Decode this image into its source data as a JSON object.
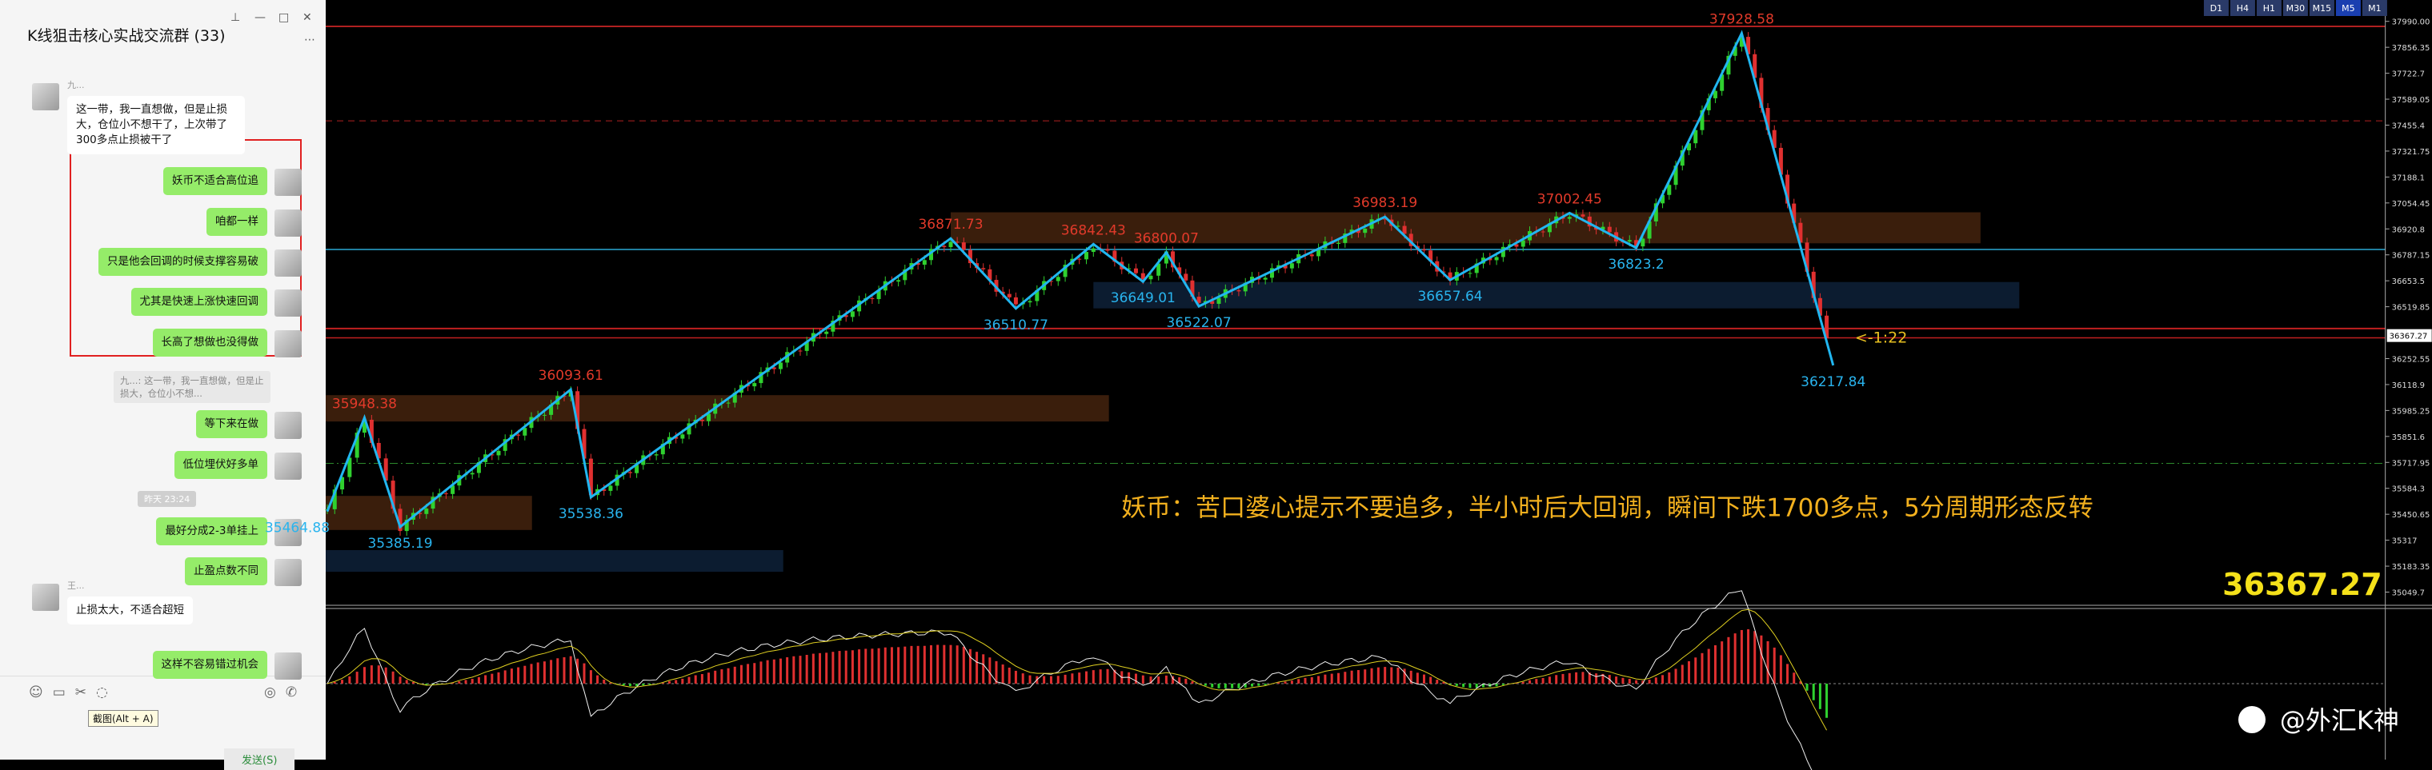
{
  "chat": {
    "title": "K线狙击核心实战交流群 (33)",
    "messages": [
      {
        "side": "left",
        "name": "九...",
        "text": "这一带，我一直想做，但是止损大，仓位小不想干了，上次带了300多点止损被干了"
      },
      {
        "side": "right",
        "text": "妖币不适合高位追"
      },
      {
        "side": "right",
        "text": "咱都一样"
      },
      {
        "side": "right",
        "text": "只是他会回调的时候支撑容易破"
      },
      {
        "side": "right",
        "text": "尤其是快速上涨快速回调"
      },
      {
        "side": "right",
        "text": "长高了想做也没得做"
      },
      {
        "side": "quote",
        "text": "九...: 这一带，我一直想做，但是止损大，仓位小不想..."
      },
      {
        "side": "right",
        "text": "等下来在做"
      },
      {
        "side": "right",
        "text": "低位埋伏好多单"
      },
      {
        "side": "time",
        "text": "昨天 23:24"
      },
      {
        "side": "right",
        "text": "最好分成2-3单挂上"
      },
      {
        "side": "right",
        "text": "止盈点数不同"
      },
      {
        "side": "left",
        "name": "王...",
        "text": "止损太大，不适合超短"
      },
      {
        "side": "right",
        "text": "这样不容易错过机会"
      }
    ],
    "tooltip": "截图(Alt + A)",
    "send": "发送(S)"
  },
  "chart": {
    "timeframes": [
      "D1",
      "H4",
      "H1",
      "M30",
      "M15",
      "M5",
      "M1"
    ],
    "active_timeframe": 5,
    "ylim": [
      34990,
      38100
    ],
    "yticks": [
      {
        "value": 37990,
        "label": "37990.00"
      },
      37856.35,
      37722.7,
      37589.05,
      37455.4,
      37321.75,
      37188.1,
      37054.45,
      36920.8,
      36787.15,
      36653.5,
      36519.85,
      36252.55,
      36118.9,
      35985.25,
      35851.6,
      35717.95,
      35584.3,
      35450.65,
      35317,
      35183.35,
      35049.7
    ],
    "swings": [
      {
        "value": 35464.88,
        "kind": "low"
      },
      {
        "value": 35948.38,
        "kind": "high"
      },
      {
        "value": 35385.19,
        "kind": "low"
      },
      {
        "value": 36093.61,
        "kind": "high"
      },
      {
        "value": 35538.36,
        "kind": "low"
      },
      {
        "value": 36871.73,
        "kind": "high"
      },
      {
        "value": 36510.77,
        "kind": "low"
      },
      {
        "value": 36842.43,
        "kind": "high"
      },
      {
        "value": 36649.01,
        "kind": "low"
      },
      {
        "value": 36800.07,
        "kind": "high"
      },
      {
        "value": 36522.07,
        "kind": "low"
      },
      {
        "value": 36983.19,
        "kind": "high"
      },
      {
        "value": 36657.64,
        "kind": "low"
      },
      {
        "value": 37002.45,
        "kind": "high"
      },
      {
        "value": 36823.2,
        "kind": "low"
      },
      {
        "value": 37928.58,
        "kind": "high"
      },
      {
        "value": 36217.84,
        "kind": "low"
      }
    ],
    "current_price": 36367.27,
    "countdown": "<-1:22",
    "annotation": "妖币：苦口婆心提示不要追多，半小时后大回调，瞬间下跌1700多点，5分周期形态反转",
    "watermark": "@外汇K神"
  }
}
